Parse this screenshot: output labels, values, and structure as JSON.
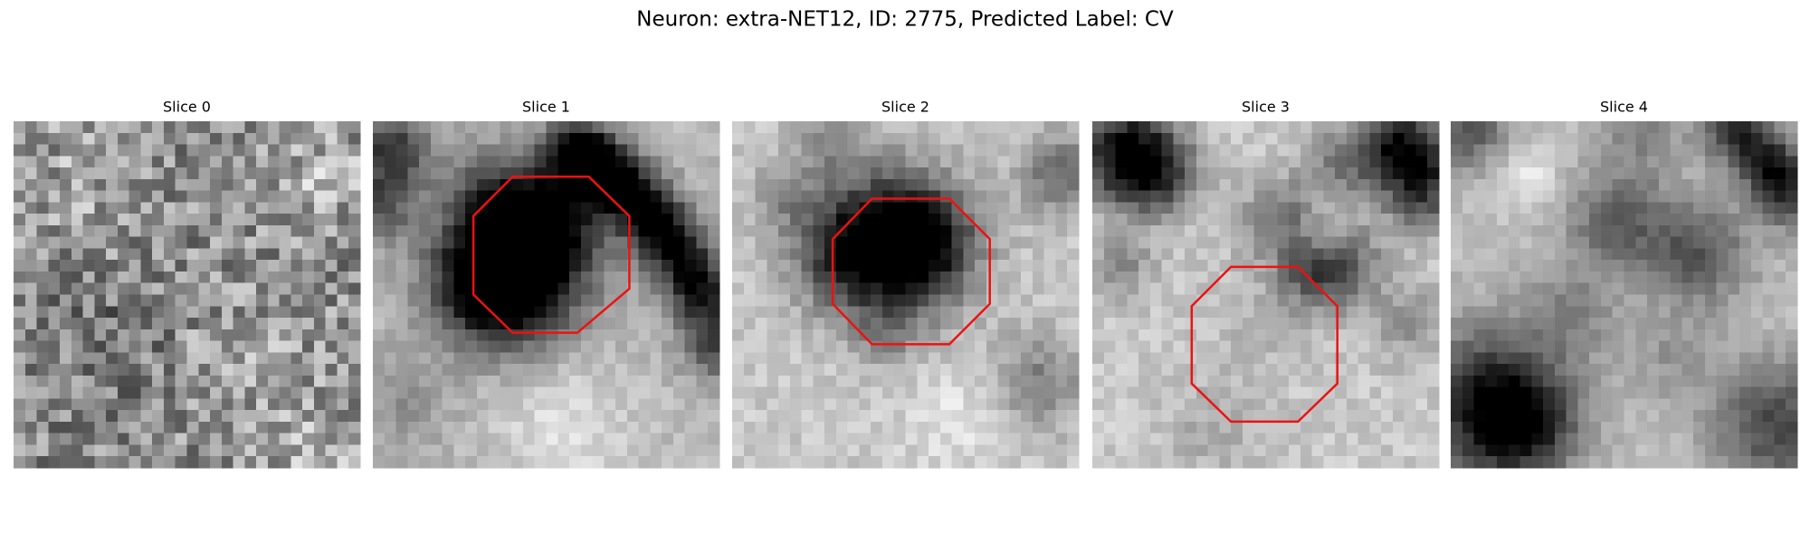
{
  "figure": {
    "title": "Neuron: extra-NET12, ID: 2775, Predicted Label: CV",
    "panels": [
      {
        "title": "Slice 0"
      },
      {
        "title": "Slice 1"
      },
      {
        "title": "Slice 2"
      },
      {
        "title": "Slice 3"
      },
      {
        "title": "Slice 4"
      }
    ]
  }
}
